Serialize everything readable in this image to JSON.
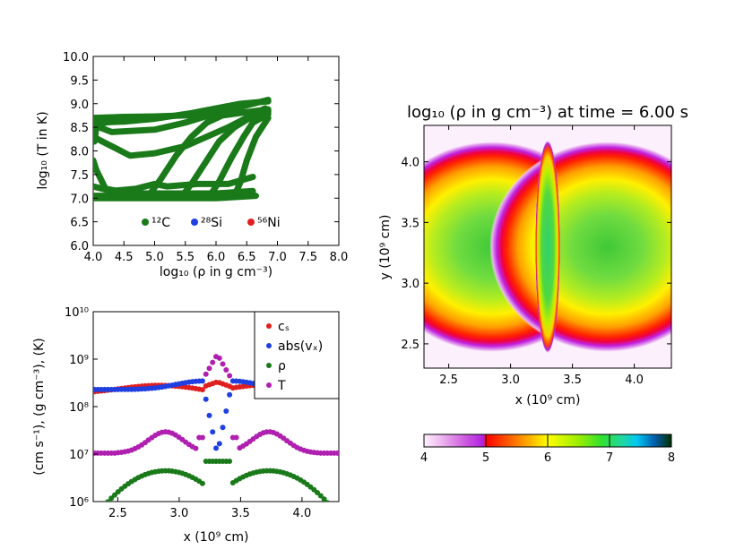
{
  "chart_data": [
    {
      "id": "tr",
      "type": "scatter",
      "title": "",
      "xlabel": "log₁₀ (ρ in g cm⁻³)",
      "ylabel": "log₁₀ (T in K)",
      "xlim": [
        4.0,
        8.0
      ],
      "ylim": [
        6.0,
        10.0
      ],
      "xticks": [
        "4.0",
        "4.5",
        "5.0",
        "5.5",
        "6.0",
        "6.5",
        "7.0",
        "7.5",
        "8.0"
      ],
      "yticks": [
        "6.0",
        "6.5",
        "7.0",
        "7.5",
        "8.0",
        "8.5",
        "9.0",
        "9.5",
        "10.0"
      ],
      "legend_position": "lower-center",
      "legend": [
        {
          "label": "¹²C",
          "color": "#1a7a1a"
        },
        {
          "label": "²⁸Si",
          "color": "#1f3fe0"
        },
        {
          "label": "⁵⁶Ni",
          "color": "#e01f1f"
        }
      ],
      "tracks": [
        [
          [
            4.0,
            7.0
          ],
          [
            4.3,
            7.0
          ],
          [
            5.0,
            7.0
          ],
          [
            6.0,
            7.0
          ],
          [
            6.65,
            7.05
          ]
        ],
        [
          [
            4.0,
            7.05
          ],
          [
            4.2,
            7.05
          ],
          [
            5.0,
            7.1
          ],
          [
            6.0,
            7.1
          ],
          [
            6.6,
            7.15
          ]
        ],
        [
          [
            4.0,
            7.25
          ],
          [
            4.3,
            7.15
          ],
          [
            4.7,
            7.2
          ],
          [
            5.0,
            7.3
          ],
          [
            5.2,
            7.25
          ],
          [
            5.7,
            7.3
          ],
          [
            6.2,
            7.3
          ],
          [
            6.6,
            7.45
          ]
        ],
        [
          [
            4.0,
            7.8
          ],
          [
            4.05,
            7.6
          ],
          [
            4.2,
            7.2
          ],
          [
            4.6,
            7.1
          ],
          [
            5.0,
            7.1
          ]
        ],
        [
          [
            4.0,
            8.3
          ],
          [
            4.3,
            8.1
          ],
          [
            4.6,
            7.9
          ],
          [
            5.0,
            7.95
          ],
          [
            5.5,
            8.1
          ],
          [
            6.2,
            8.5
          ],
          [
            6.8,
            8.9
          ]
        ],
        [
          [
            4.0,
            8.55
          ],
          [
            4.3,
            8.4
          ],
          [
            5.0,
            8.45
          ],
          [
            5.5,
            8.6
          ],
          [
            6.0,
            8.8
          ],
          [
            6.85,
            9.08
          ]
        ],
        [
          [
            4.0,
            8.7
          ],
          [
            4.5,
            8.72
          ],
          [
            5.0,
            8.73
          ],
          [
            5.5,
            8.75
          ],
          [
            6.0,
            8.78
          ],
          [
            6.85,
            8.85
          ]
        ],
        [
          [
            4.0,
            8.6
          ],
          [
            4.5,
            8.62
          ],
          [
            5.0,
            8.68
          ],
          [
            5.6,
            8.8
          ],
          [
            6.4,
            9.0
          ],
          [
            6.85,
            9.05
          ]
        ],
        [
          [
            4.9,
            7.05
          ],
          [
            5.1,
            7.4
          ],
          [
            5.35,
            7.9
          ],
          [
            5.6,
            8.3
          ],
          [
            5.85,
            8.6
          ],
          [
            6.1,
            8.75
          ],
          [
            6.5,
            8.82
          ],
          [
            6.85,
            8.88
          ]
        ],
        [
          [
            5.45,
            7.05
          ],
          [
            5.6,
            7.3
          ],
          [
            5.85,
            7.8
          ],
          [
            6.05,
            8.2
          ],
          [
            6.3,
            8.5
          ],
          [
            6.55,
            8.7
          ],
          [
            6.85,
            8.82
          ]
        ],
        [
          [
            5.9,
            7.05
          ],
          [
            6.05,
            7.35
          ],
          [
            6.25,
            7.85
          ],
          [
            6.45,
            8.3
          ],
          [
            6.6,
            8.6
          ],
          [
            6.85,
            8.78
          ]
        ],
        [
          [
            6.3,
            7.05
          ],
          [
            6.4,
            7.35
          ],
          [
            6.5,
            7.8
          ],
          [
            6.65,
            8.3
          ],
          [
            6.8,
            8.6
          ],
          [
            6.85,
            8.7
          ]
        ],
        [
          [
            4.0,
            8.5
          ],
          [
            4.2,
            8.6
          ],
          [
            4.5,
            8.68
          ]
        ],
        [
          [
            4.02,
            8.2
          ],
          [
            4.05,
            8.5
          ],
          [
            4.08,
            8.7
          ]
        ]
      ]
    },
    {
      "id": "profile",
      "type": "scatter",
      "title": "",
      "xlabel": "x (10⁹ cm)",
      "ylabel": "(cm s⁻¹), (g cm⁻³), (K)",
      "xlim": [
        2.3,
        4.3
      ],
      "ylim_log10": [
        6,
        10
      ],
      "yscale": "log",
      "xticks": [
        "2.5",
        "3.0",
        "3.5",
        "4.0"
      ],
      "yticks": [
        "10⁶",
        "10⁷",
        "10⁸",
        "10⁹",
        "10¹⁰"
      ],
      "legend_position": "upper-right",
      "series": [
        {
          "name": "cₛ",
          "color": "#e01f1f"
        },
        {
          "name": "abs(vₓ)",
          "color": "#1f3fe0"
        },
        {
          "name": "ρ",
          "color": "#1a7a1a"
        },
        {
          "name": "T",
          "color": "#b020b0"
        }
      ]
    },
    {
      "id": "density-map",
      "type": "heatmap",
      "title": "log₁₀ (ρ in g cm⁻³) at time = 6.00 s",
      "xlabel": "x (10⁹ cm)",
      "ylabel": "y (10⁹ cm)",
      "xlim": [
        2.3,
        4.3
      ],
      "ylim": [
        2.3,
        4.3
      ],
      "xticks": [
        "2.5",
        "3.0",
        "3.5",
        "4.0"
      ],
      "yticks": [
        "2.5",
        "3.0",
        "3.5",
        "4.0"
      ],
      "colorbar": {
        "range": [
          4,
          8
        ],
        "ticks": [
          "4",
          "5",
          "6",
          "7",
          "8"
        ]
      },
      "blobs": [
        {
          "cx": 2.85,
          "cy": 3.3,
          "rx": 0.95,
          "ry": 0.87
        },
        {
          "cx": 3.78,
          "cy": 3.3,
          "rx": 0.95,
          "ry": 0.87
        }
      ],
      "shock": {
        "cx": 3.3,
        "cy": 3.3,
        "rx": 0.1,
        "ry": 0.88
      }
    }
  ]
}
